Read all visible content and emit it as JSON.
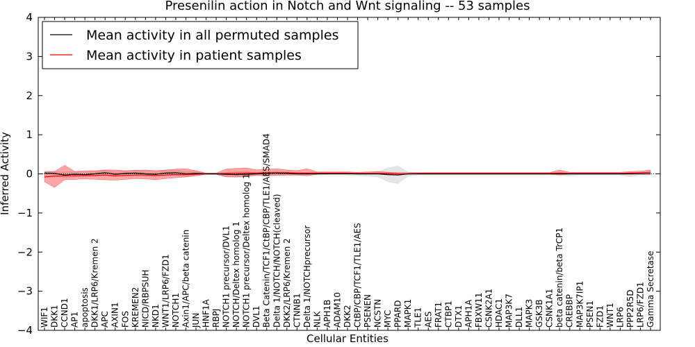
{
  "chart_data": {
    "type": "line",
    "title": "Presenilin action in Notch and Wnt signaling -- 53 samples",
    "xlabel": "Cellular Entities",
    "ylabel": "Inferred Activity",
    "ylim": [
      -4,
      4
    ],
    "yticks": [
      -4,
      -3,
      -2,
      -1,
      0,
      1,
      2,
      3,
      4
    ],
    "ytick_labels": [
      "−4",
      "−3",
      "−2",
      "−1",
      "0",
      "1",
      "2",
      "3",
      "4"
    ],
    "grid": false,
    "legend_position": "top-left",
    "categories": [
      "WIF1",
      "DKK1",
      "CCND1",
      "AP1",
      "apoptosis",
      "DKK1/LRP6/Kremen 2",
      "APC",
      "AXIN1",
      "FOS",
      "KREMEN2",
      "NICD/RBPSUH",
      "NKD1",
      "WNT1/LRP6/FZD1",
      "NOTCH1",
      "Axin1/APC/beta catenin",
      "JUN",
      "HNF1A",
      "RBPJ",
      "NOTCH1 precursor/DVL1",
      "NOTCH/Deltex homolog 1",
      "NOTCH1 precursor/Deltex homolog 1",
      "DVL1",
      "Beta Catenin/TCF1/CtBP/CBP/TLE1/AES/SMAD4",
      "Delta 1/NOTCH/NOTCH(cleaved)",
      "DKK2/LRP6/Kremen 2",
      "CTNNB1",
      "Delta 1/NOTCHprecursor",
      "NLK",
      "APH1B",
      "ADAM10",
      "DKK2",
      "CtBP/CBP/TCF1/TLE1/AES",
      "PSENEN",
      "NCSTN",
      "MYC",
      "PPARD",
      "MAPK1",
      "TLE1",
      "AES",
      "FRAT1",
      "CTBP1",
      "DTX1",
      "APH1A",
      "FBXW11",
      "CSNK2A1",
      "HDAC1",
      "MAP3K7",
      "DLL1",
      "MAPK3",
      "GSK3B",
      "CSNK1A1",
      "beta catenin/beta TrCP1",
      "CREBBP",
      "MAP3K7IP1",
      "PSEN1",
      "FZD1",
      "WNT1",
      "LRP6",
      "PPP2R5D",
      "LRP6/FZD1",
      "Gamma Secretase"
    ],
    "series": [
      {
        "name": "Mean activity in all permuted samples",
        "color": "#000000",
        "values": [
          0.02,
          0.01,
          -0.03,
          -0.01,
          -0.02,
          0.0,
          0.03,
          -0.01,
          0.01,
          0.02,
          0.0,
          -0.01,
          0.02,
          0.03,
          0.0,
          0.01,
          0.0,
          0.0,
          -0.01,
          -0.02,
          -0.01,
          0.0,
          0.01,
          0.02,
          0.01,
          0.0,
          0.0,
          0.0,
          0.0,
          0.0,
          0.0,
          0.0,
          0.0,
          0.0,
          -0.02,
          -0.03,
          0.0,
          0.0,
          0.0,
          0.0,
          0.0,
          0.0,
          0.0,
          0.0,
          0.0,
          0.0,
          0.0,
          0.0,
          0.0,
          0.0,
          0.0,
          0.0,
          0.0,
          0.0,
          0.0,
          0.0,
          0.0,
          0.0,
          0.0,
          0.0,
          0.0
        ],
        "band_upper": [
          0.08,
          0.07,
          0.05,
          0.06,
          0.05,
          0.07,
          0.1,
          0.06,
          0.08,
          0.09,
          0.07,
          0.06,
          0.09,
          0.1,
          0.07,
          0.06,
          0.02,
          0.02,
          0.05,
          0.06,
          0.07,
          0.04,
          0.06,
          0.08,
          0.06,
          0.04,
          0.03,
          0.03,
          0.03,
          0.03,
          0.03,
          0.03,
          0.04,
          0.05,
          0.16,
          0.2,
          0.05,
          0.03,
          0.03,
          0.03,
          0.03,
          0.03,
          0.03,
          0.03,
          0.03,
          0.03,
          0.03,
          0.03,
          0.03,
          0.03,
          0.03,
          0.03,
          0.03,
          0.03,
          0.03,
          0.03,
          0.03,
          0.03,
          0.03,
          0.03,
          0.03
        ],
        "band_lower": [
          -0.05,
          -0.06,
          -0.1,
          -0.08,
          -0.08,
          -0.07,
          -0.05,
          -0.08,
          -0.06,
          -0.05,
          -0.07,
          -0.08,
          -0.05,
          -0.04,
          -0.07,
          -0.05,
          -0.02,
          -0.02,
          -0.06,
          -0.09,
          -0.08,
          -0.04,
          -0.04,
          -0.04,
          -0.04,
          -0.04,
          -0.03,
          -0.03,
          -0.03,
          -0.03,
          -0.03,
          -0.05,
          -0.06,
          -0.08,
          -0.2,
          -0.25,
          -0.06,
          -0.03,
          -0.03,
          -0.03,
          -0.03,
          -0.03,
          -0.03,
          -0.03,
          -0.03,
          -0.03,
          -0.03,
          -0.03,
          -0.03,
          -0.03,
          -0.03,
          -0.03,
          -0.06,
          -0.03,
          -0.03,
          -0.03,
          -0.03,
          -0.03,
          -0.08,
          -0.03,
          -0.03
        ]
      },
      {
        "name": "Mean activity in patient samples",
        "color": "#ff0000",
        "values": [
          -0.08,
          -0.06,
          -0.05,
          -0.05,
          -0.04,
          -0.04,
          -0.03,
          -0.05,
          -0.04,
          -0.03,
          -0.03,
          -0.04,
          -0.03,
          -0.02,
          -0.02,
          -0.01,
          0.0,
          0.0,
          0.01,
          0.01,
          0.02,
          0.02,
          0.03,
          0.03,
          0.03,
          0.02,
          0.02,
          0.02,
          0.02,
          0.02,
          0.02,
          0.01,
          0.01,
          0.01,
          0.01,
          0.0,
          0.0,
          0.01,
          0.01,
          0.01,
          0.01,
          0.01,
          0.01,
          0.01,
          0.01,
          0.01,
          0.01,
          0.01,
          0.01,
          0.01,
          0.01,
          0.02,
          0.01,
          0.01,
          0.01,
          0.01,
          0.01,
          0.01,
          0.02,
          0.03,
          0.04
        ],
        "band_upper": [
          0.05,
          0.06,
          0.22,
          0.06,
          0.08,
          0.08,
          0.1,
          0.1,
          0.08,
          0.09,
          0.1,
          0.08,
          0.1,
          0.12,
          0.13,
          0.08,
          0.02,
          0.02,
          0.12,
          0.14,
          0.15,
          0.1,
          0.12,
          0.13,
          0.1,
          0.08,
          0.13,
          0.05,
          0.05,
          0.05,
          0.05,
          0.04,
          0.05,
          0.06,
          0.04,
          0.03,
          0.03,
          0.03,
          0.03,
          0.03,
          0.03,
          0.03,
          0.03,
          0.03,
          0.03,
          0.03,
          0.03,
          0.03,
          0.03,
          0.03,
          0.03,
          0.1,
          0.04,
          0.04,
          0.04,
          0.04,
          0.04,
          0.04,
          0.06,
          0.07,
          0.1
        ],
        "band_lower": [
          -0.2,
          -0.35,
          -0.15,
          -0.14,
          -0.13,
          -0.14,
          -0.15,
          -0.16,
          -0.14,
          -0.12,
          -0.13,
          -0.15,
          -0.12,
          -0.1,
          -0.08,
          -0.05,
          -0.01,
          -0.01,
          -0.08,
          -0.08,
          -0.06,
          -0.04,
          -0.05,
          -0.04,
          -0.03,
          -0.03,
          -0.05,
          -0.01,
          0.0,
          0.0,
          0.0,
          -0.01,
          -0.01,
          -0.01,
          -0.01,
          -0.01,
          -0.01,
          -0.01,
          -0.01,
          -0.01,
          -0.01,
          -0.01,
          -0.01,
          -0.01,
          -0.01,
          -0.01,
          -0.01,
          -0.01,
          -0.01,
          -0.01,
          -0.01,
          -0.03,
          -0.01,
          -0.01,
          -0.01,
          -0.01,
          -0.01,
          -0.01,
          -0.01,
          0.0,
          0.0
        ]
      }
    ],
    "baseline": {
      "value": 0,
      "style": "dotted",
      "color": "#000000"
    }
  }
}
